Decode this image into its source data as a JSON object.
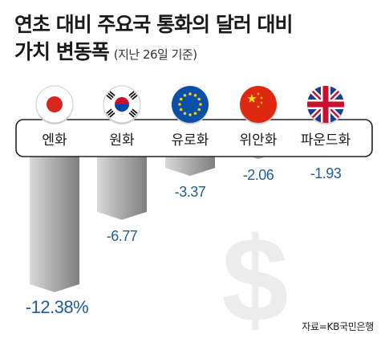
{
  "title_line1": "연초 대비 주요국 통화의 달러 대비",
  "title_line2": "가치 변동폭",
  "subtitle": "(지난 26일 기준)",
  "source": "자료=KB국민은행",
  "colors": {
    "bar_light": "#d9d9d9",
    "bar_mid": "#a6a6a6",
    "bar_dark": "#7f7f7f",
    "value_text": "#1f5c99",
    "dollar_sign": "#ececec"
  },
  "chart_data": {
    "type": "bar",
    "title": "연초 대비 주요국 통화의 달러 대비 가치 변동폭",
    "categories": [
      "엔화",
      "원화",
      "유로화",
      "위안화",
      "파운드화"
    ],
    "values": [
      -12.38,
      -6.77,
      -3.37,
      -2.06,
      -1.93
    ],
    "value_labels": [
      "-12.38%",
      "-6.77",
      "-3.37",
      "-2.06",
      "-1.93"
    ],
    "flags": [
      "japan-flag",
      "south-korea-flag",
      "eu-flag",
      "china-flag",
      "uk-flag"
    ],
    "ylim": [
      -12.38,
      0
    ]
  }
}
